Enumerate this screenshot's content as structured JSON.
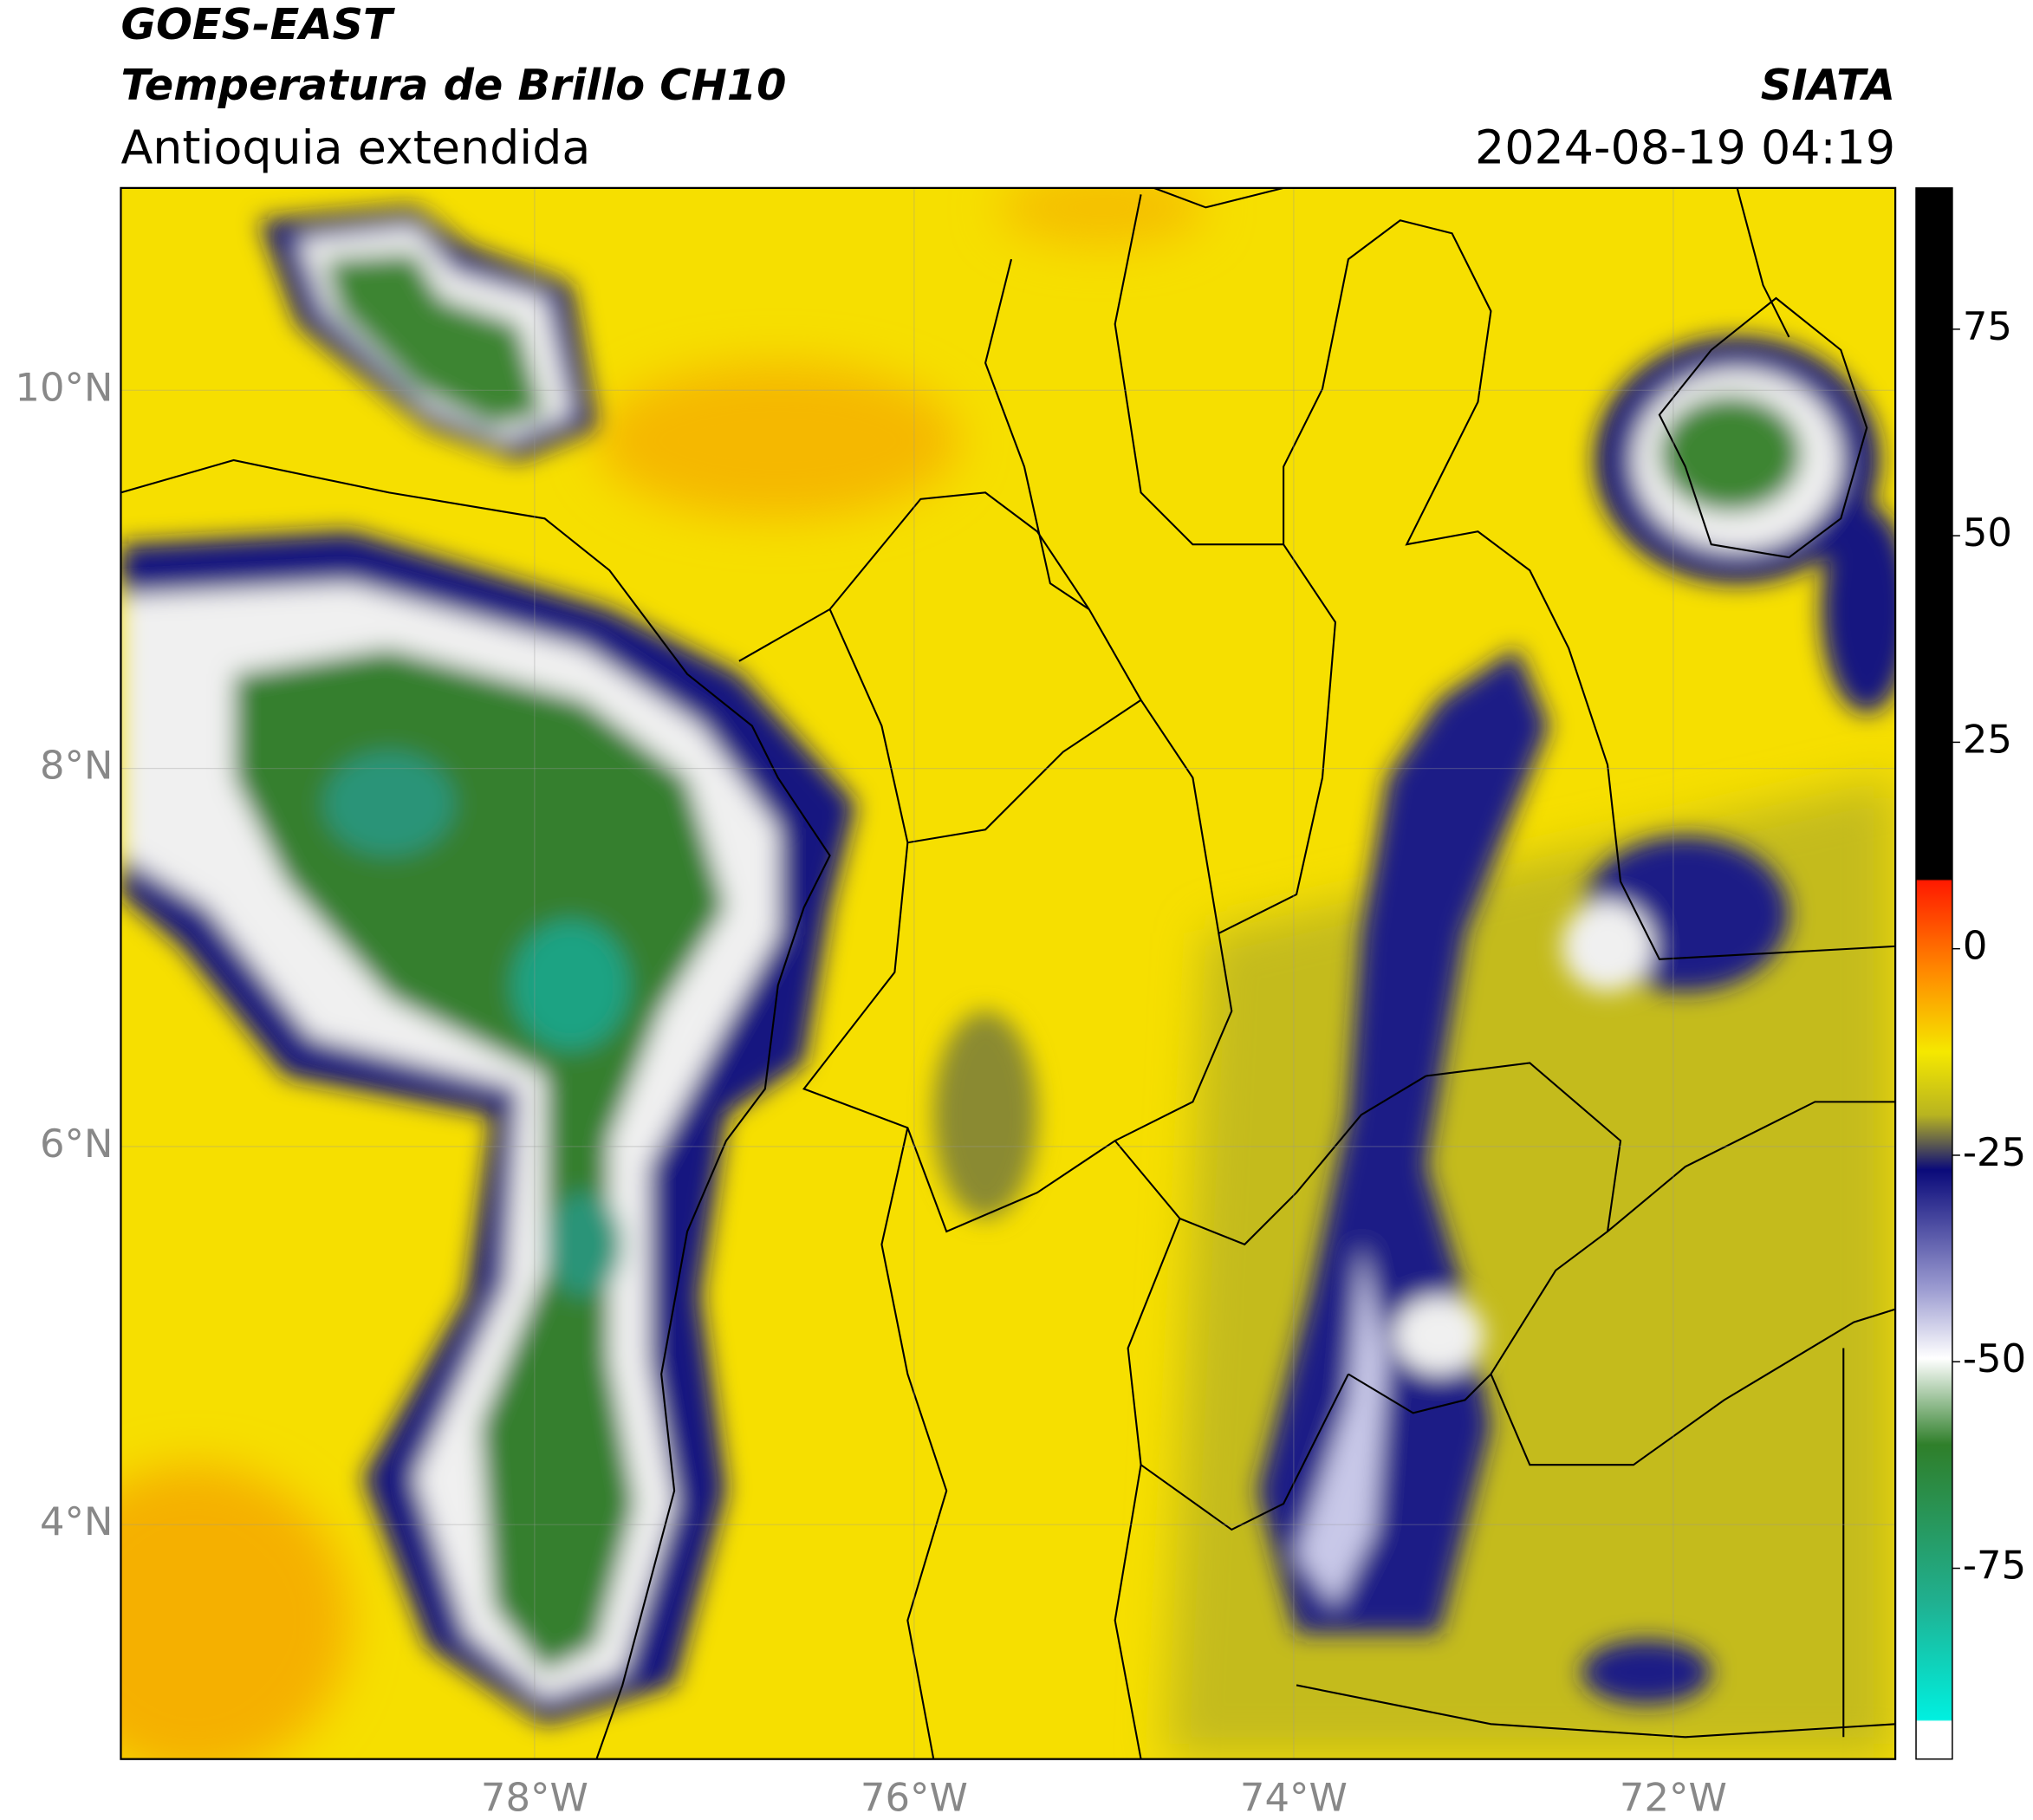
{
  "header": {
    "title": "GOES-EAST",
    "subtitle": "Temperatura de Brillo CH10",
    "region": "Antioquia extendida",
    "source": "SIATA",
    "datetime": "2024-08-19 04:19"
  },
  "map": {
    "xlim": [
      -80.18,
      -70.83
    ],
    "ylim": [
      2.76,
      11.07
    ],
    "xticks": [
      {
        "value": -78,
        "label": "78°W"
      },
      {
        "value": -76,
        "label": "76°W"
      },
      {
        "value": -74,
        "label": "74°W"
      },
      {
        "value": -72,
        "label": "72°W"
      }
    ],
    "yticks": [
      {
        "value": 4,
        "label": "4°N"
      },
      {
        "value": 6,
        "label": "6°N"
      },
      {
        "value": 8,
        "label": "8°N"
      },
      {
        "value": 10,
        "label": "10°N"
      }
    ]
  },
  "colorbar": {
    "lim": [
      -98.1,
      92.1
    ],
    "ticks": [
      -75,
      -50,
      -25,
      0,
      25,
      50,
      75
    ]
  }
}
